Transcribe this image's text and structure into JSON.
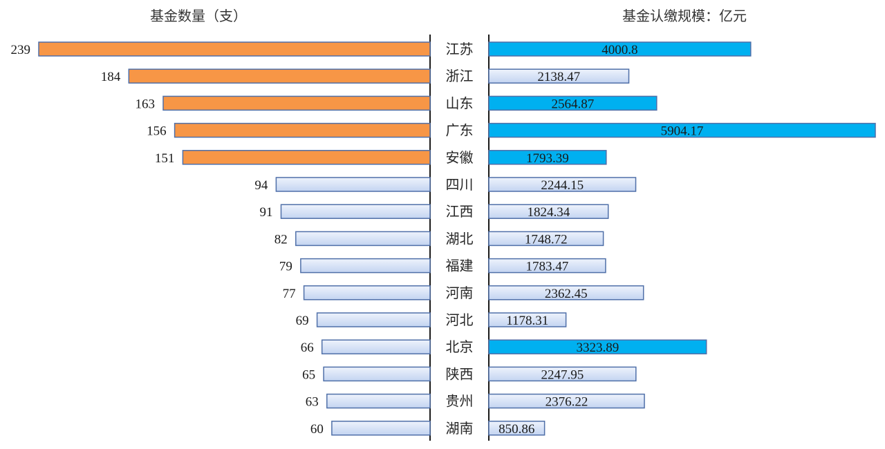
{
  "chart_data": {
    "type": "bar",
    "left_title": "基金数量（支）",
    "right_title": "基金认缴规模：亿元",
    "categories": [
      "江苏",
      "浙江",
      "山东",
      "广东",
      "安徽",
      "四川",
      "江西",
      "湖北",
      "福建",
      "河南",
      "河北",
      "北京",
      "陕西",
      "贵州",
      "湖南"
    ],
    "series": [
      {
        "name": "基金数量（支）",
        "values": [
          239,
          184,
          163,
          156,
          151,
          94,
          91,
          82,
          79,
          77,
          69,
          66,
          65,
          63,
          60
        ],
        "labels": [
          "239",
          "184",
          "163",
          "156",
          "151",
          "94",
          "91",
          "82",
          "79",
          "77",
          "69",
          "66",
          "65",
          "63",
          "60"
        ]
      },
      {
        "name": "基金认缴规模：亿元",
        "values": [
          4000.8,
          2138.47,
          2564.87,
          5904.17,
          1793.39,
          2244.15,
          1824.34,
          1748.72,
          1783.47,
          2362.45,
          1178.31,
          3323.89,
          2247.95,
          2376.22,
          850.86
        ],
        "labels": [
          "4000.8",
          "2138.47",
          "2564.87",
          "5904.17",
          "1793.39",
          "2244.15",
          "1824.34",
          "1748.72",
          "1783.47",
          "2362.45",
          "1178.31",
          "3323.89",
          "2247.95",
          "2376.22",
          "850.86"
        ]
      }
    ],
    "left_highlight": [
      true,
      true,
      true,
      true,
      true,
      false,
      false,
      false,
      false,
      false,
      false,
      false,
      false,
      false,
      false
    ],
    "right_highlight": [
      true,
      false,
      true,
      true,
      true,
      false,
      false,
      false,
      false,
      false,
      false,
      true,
      false,
      false,
      false
    ],
    "colors": {
      "left_highlight": "#F79646",
      "right_highlight": "#00B0F0",
      "plain_fill_top": "#EEF3FC",
      "plain_fill_bottom": "#C3D4F1",
      "bar_border": "#4F6FA8",
      "axis": "#1a1a1a"
    },
    "grid": false,
    "legend": "none"
  }
}
